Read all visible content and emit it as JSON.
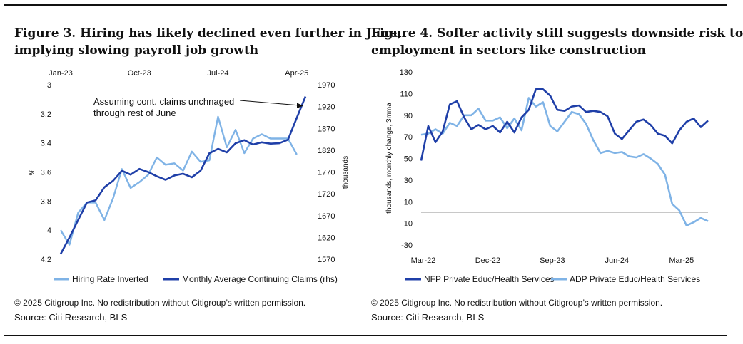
{
  "figures": [
    {
      "title_line1": "Figure 3. Hiring has likely declined even further in June,",
      "title_line2": "implying slowing payroll job growth",
      "copyright": "© 2025 Citigroup Inc. No redistribution without Citigroup’s written permission.",
      "source": "Source: Citi Research, BLS"
    },
    {
      "title_line1": "Figure 4. Softer activity still suggests downside risk to",
      "title_line2": "employment in sectors like construction",
      "copyright": "© 2025 Citigroup Inc. No redistribution without Citigroup’s written permission.",
      "source": "Source: Citi Research, BLS"
    }
  ],
  "chart_data": [
    {
      "type": "line",
      "x_ticks": [
        "Jan-23",
        "Oct-23",
        "Jul-24",
        "Apr-25"
      ],
      "y_left": {
        "label": "%",
        "ticks": [
          "3",
          "3.2",
          "3.4",
          "3.6",
          "3.8",
          "4",
          "4.2"
        ],
        "range": [
          3,
          4.2
        ],
        "inverted": true
      },
      "y_right": {
        "label": "thousands",
        "ticks": [
          "1970",
          "1920",
          "1870",
          "1820",
          "1770",
          "1720",
          "1670",
          "1620",
          "1570"
        ],
        "range": [
          1570,
          1970
        ]
      },
      "annotation": {
        "line1": "Assuming cont. claims unchnaged",
        "line2": "through rest of June"
      },
      "legend": [
        "Hiring Rate Inverted",
        "Monthly Average Continuing Claims (rhs)"
      ],
      "series": [
        {
          "name": "Hiring Rate Inverted",
          "axis": "left",
          "color": "#7fb3e6",
          "x": [
            0,
            1,
            2,
            3,
            4,
            5,
            6,
            7,
            8,
            9,
            10,
            11,
            12,
            13,
            14,
            15,
            16,
            17,
            18,
            19,
            20,
            21,
            22,
            23,
            24,
            25,
            26,
            27
          ],
          "values": [
            4.0,
            4.1,
            3.88,
            3.81,
            3.81,
            3.93,
            3.78,
            3.58,
            3.71,
            3.67,
            3.62,
            3.5,
            3.55,
            3.54,
            3.59,
            3.46,
            3.53,
            3.52,
            3.22,
            3.43,
            3.31,
            3.47,
            3.37,
            3.34,
            3.37,
            3.37,
            3.37,
            3.48
          ]
        },
        {
          "name": "Monthly Average Continuing Claims (rhs)",
          "axis": "right",
          "color": "#1f3fa8",
          "x": [
            0,
            1,
            2,
            3,
            4,
            5,
            6,
            7,
            8,
            9,
            10,
            11,
            12,
            13,
            14,
            15,
            16,
            17,
            18,
            19,
            20,
            21,
            22,
            23,
            24,
            25,
            26,
            27,
            28
          ],
          "values": [
            1582,
            1620,
            1660,
            1700,
            1705,
            1735,
            1750,
            1773,
            1764,
            1777,
            1770,
            1760,
            1752,
            1762,
            1766,
            1758,
            1773,
            1813,
            1823,
            1815,
            1836,
            1843,
            1833,
            1838,
            1835,
            1836,
            1844,
            1894,
            1943
          ]
        }
      ]
    },
    {
      "type": "line",
      "x_ticks": [
        "Mar-22",
        "Dec-22",
        "Sep-23",
        "Jun-24",
        "Mar-25"
      ],
      "y": {
        "label": "thousands, monthly change, 3mma",
        "ticks": [
          "130",
          "110",
          "90",
          "70",
          "50",
          "30",
          "10",
          "-10",
          "-30"
        ],
        "range": [
          -30,
          130
        ]
      },
      "legend": [
        "NFP Private Educ/Health Services",
        "ADP Private Educ/Health Services"
      ],
      "series": [
        {
          "name": "NFP Private Educ/Health Services",
          "color": "#1f3fa8",
          "x": [
            0,
            1,
            2,
            3,
            4,
            5,
            6,
            7,
            8,
            9,
            10,
            11,
            12,
            13,
            14,
            15,
            16,
            17,
            18,
            19,
            20,
            21,
            22,
            23,
            24,
            25,
            26,
            27,
            28,
            29,
            30,
            31,
            32,
            33,
            34,
            35,
            36,
            37,
            38,
            39,
            40
          ],
          "values": [
            48,
            80,
            65,
            75,
            100,
            103,
            88,
            77,
            81,
            77,
            80,
            74,
            84,
            74,
            88,
            95,
            114,
            114,
            108,
            95,
            94,
            98,
            99,
            93,
            94,
            93,
            89,
            73,
            68,
            76,
            84,
            86,
            81,
            73,
            71,
            64,
            76,
            84,
            87,
            79,
            85
          ]
        },
        {
          "name": "ADP Private Educ/Health Services",
          "color": "#7fb3e6",
          "x": [
            0,
            1,
            2,
            3,
            4,
            5,
            6,
            7,
            8,
            9,
            10,
            11,
            12,
            13,
            14,
            15,
            16,
            17,
            18,
            19,
            20,
            21,
            22,
            23,
            24,
            25,
            26,
            27,
            28,
            29,
            30,
            31,
            32,
            33,
            34,
            35,
            36,
            37,
            38,
            39,
            40
          ],
          "values": [
            72,
            73,
            77,
            73,
            83,
            80,
            90,
            90,
            96,
            85,
            85,
            88,
            78,
            87,
            76,
            106,
            98,
            102,
            80,
            75,
            84,
            93,
            91,
            82,
            67,
            55,
            57,
            55,
            56,
            52,
            51,
            54,
            50,
            45,
            35,
            8,
            2,
            -12,
            -9,
            -5,
            -8
          ]
        }
      ]
    }
  ]
}
